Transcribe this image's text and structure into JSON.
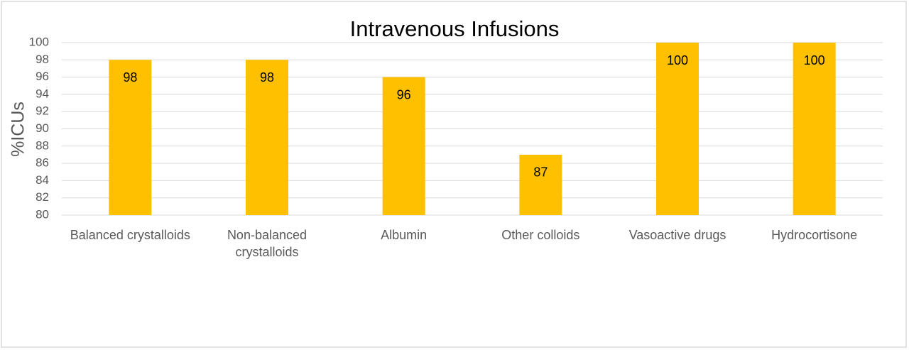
{
  "chart_data": {
    "type": "bar",
    "title": "Intravenous Infusions",
    "y_label": "%ICUs",
    "categories": [
      "Balanced crystalloids",
      "Non-balanced crystalloids",
      "Albumin",
      "Other colloids",
      "Vasoactive drugs",
      "Hydrocortisone"
    ],
    "values": [
      98,
      98,
      96,
      87,
      100,
      100
    ],
    "color": "#ffc000",
    "ylim": [
      80,
      100
    ],
    "yticks": [
      80,
      82,
      84,
      86,
      88,
      90,
      92,
      94,
      96,
      98,
      100
    ],
    "grid": true
  }
}
